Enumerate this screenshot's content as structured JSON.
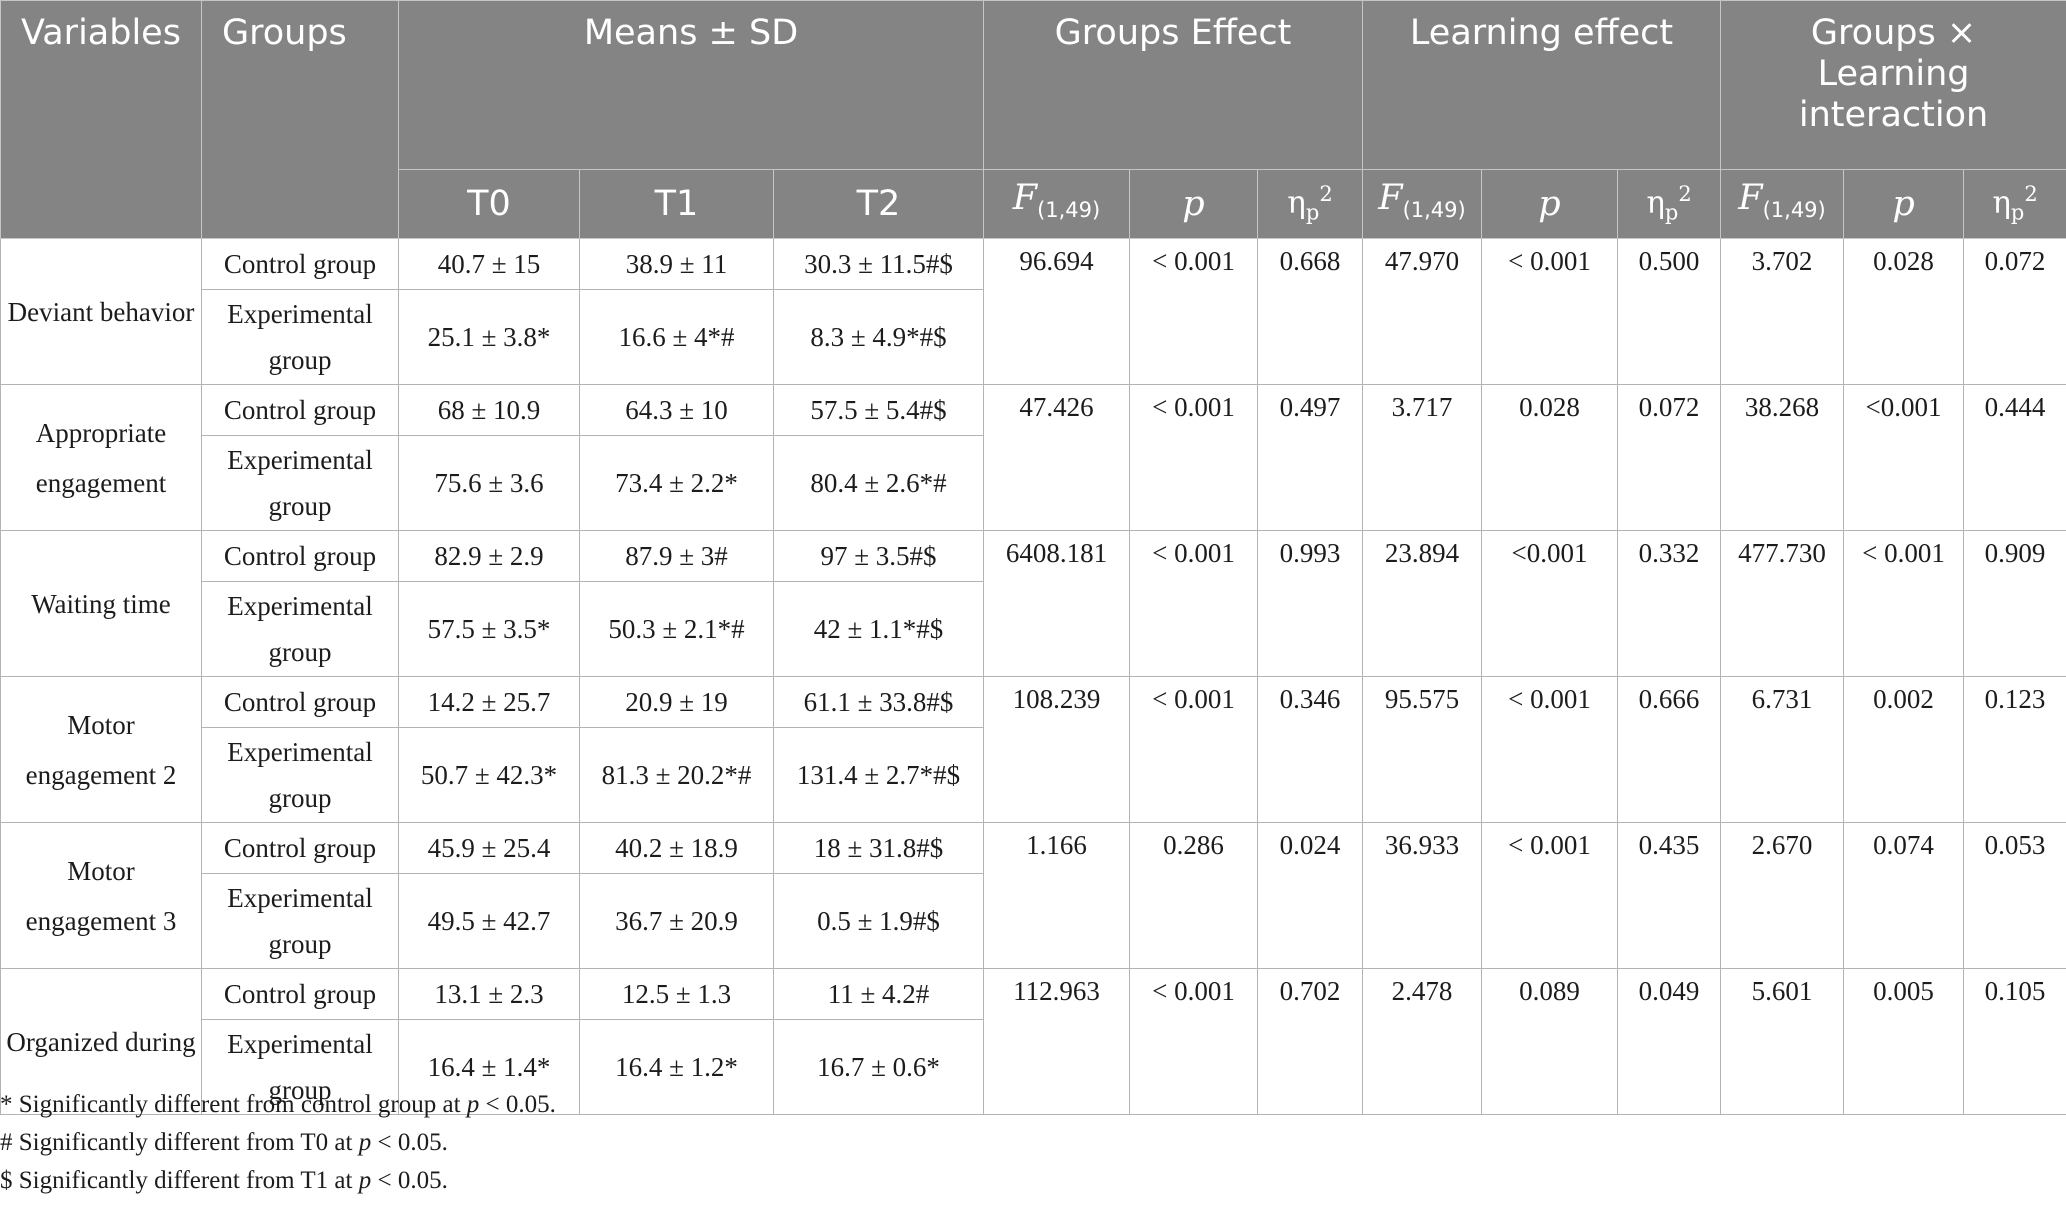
{
  "header": {
    "variables": "Variables",
    "groups": "Groups",
    "means": "Means ± SD",
    "groups_effect": "Groups Effect",
    "learning_effect": "Learning effect",
    "interaction": "Groups × Learning interaction",
    "t0": "T0",
    "t1": "T1",
    "t2": "T2",
    "f_symbol": "F",
    "f_sub": "(1,49)",
    "p": "p",
    "eta": "η",
    "eta_sub": "p",
    "eta_sup": "2"
  },
  "rows": [
    {
      "variable": "Deviant behavior",
      "control": {
        "label": "Control group",
        "t0": "40.7 ± 15",
        "t1": "38.9 ± 11",
        "t2": "30.3 ± 11.5#$"
      },
      "experimental": {
        "label": "Experimental group",
        "t0": "25.1 ± 3.8*",
        "t1": "16.6 ± 4*#",
        "t2": "8.3 ± 4.9*#$"
      },
      "ge_f": "96.694",
      "ge_p": "< 0.001",
      "ge_eta": "0.668",
      "le_f": "47.970",
      "le_p": "< 0.001",
      "le_eta": "0.500",
      "ix_f": "3.702",
      "ix_p": "0.028",
      "ix_eta": "0.072"
    },
    {
      "variable": "Appropriate engagement",
      "control": {
        "label": "Control group",
        "t0": "68 ± 10.9",
        "t1": "64.3 ± 10",
        "t2": "57.5 ± 5.4#$"
      },
      "experimental": {
        "label": "Experimental group",
        "t0": "75.6 ± 3.6",
        "t1": "73.4 ± 2.2*",
        "t2": "80.4 ± 2.6*#"
      },
      "ge_f": "47.426",
      "ge_p": "< 0.001",
      "ge_eta": "0.497",
      "le_f": "3.717",
      "le_p": "0.028",
      "le_eta": "0.072",
      "ix_f": "38.268",
      "ix_p": "<0.001",
      "ix_eta": "0.444"
    },
    {
      "variable": "Waiting time",
      "control": {
        "label": "Control group",
        "t0": "82.9 ± 2.9",
        "t1": "87.9 ± 3#",
        "t2": "97 ± 3.5#$"
      },
      "experimental": {
        "label": "Experimental group",
        "t0": "57.5 ± 3.5*",
        "t1": "50.3 ± 2.1*#",
        "t2": "42 ± 1.1*#$"
      },
      "ge_f": "6408.181",
      "ge_p": "< 0.001",
      "ge_eta": "0.993",
      "le_f": "23.894",
      "le_p": "<0.001",
      "le_eta": "0.332",
      "ix_f": "477.730",
      "ix_p": "< 0.001",
      "ix_eta": "0.909"
    },
    {
      "variable": "Motor engagement 2",
      "control": {
        "label": "Control group",
        "t0": "14.2 ± 25.7",
        "t1": "20.9 ± 19",
        "t2": "61.1 ± 33.8#$"
      },
      "experimental": {
        "label": "Experimental group",
        "t0": "50.7 ± 42.3*",
        "t1": "81.3 ± 20.2*#",
        "t2": "131.4 ± 2.7*#$"
      },
      "ge_f": "108.239",
      "ge_p": "< 0.001",
      "ge_eta": "0.346",
      "le_f": "95.575",
      "le_p": "< 0.001",
      "le_eta": "0.666",
      "ix_f": "6.731",
      "ix_p": "0.002",
      "ix_eta": "0.123"
    },
    {
      "variable": "Motor engagement 3",
      "control": {
        "label": "Control group",
        "t0": "45.9 ± 25.4",
        "t1": "40.2 ± 18.9",
        "t2": "18 ± 31.8#$"
      },
      "experimental": {
        "label": "Experimental group",
        "t0": "49.5 ± 42.7",
        "t1": "36.7 ± 20.9",
        "t2": "0.5 ± 1.9#$"
      },
      "ge_f": "1.166",
      "ge_p": "0.286",
      "ge_eta": "0.024",
      "le_f": "36.933",
      "le_p": "< 0.001",
      "le_eta": "0.435",
      "ix_f": "2.670",
      "ix_p": "0.074",
      "ix_eta": "0.053"
    },
    {
      "variable": "Organized during",
      "control": {
        "label": "Control group",
        "t0": "13.1 ± 2.3",
        "t1": "12.5 ± 1.3",
        "t2": "11 ± 4.2#"
      },
      "experimental": {
        "label": "Experimental group",
        "t0": "16.4 ± 1.4*",
        "t1": "16.4 ± 1.2*",
        "t2": "16.7 ± 0.6*"
      },
      "ge_f": "112.963",
      "ge_p": "< 0.001",
      "ge_eta": "0.702",
      "le_f": "2.478",
      "le_p": "0.089",
      "le_eta": "0.049",
      "ix_f": "5.601",
      "ix_p": "0.005",
      "ix_eta": "0.105"
    }
  ],
  "notes": [
    {
      "prefix": "* Significantly different from control group at ",
      "italic": "p",
      "suffix": " < 0.05."
    },
    {
      "prefix": "# Significantly different from T0 at ",
      "italic": "p",
      "suffix": " < 0.05."
    },
    {
      "prefix": "$ Significantly different from T1 at ",
      "italic": "p",
      "suffix": " < 0.05."
    }
  ]
}
